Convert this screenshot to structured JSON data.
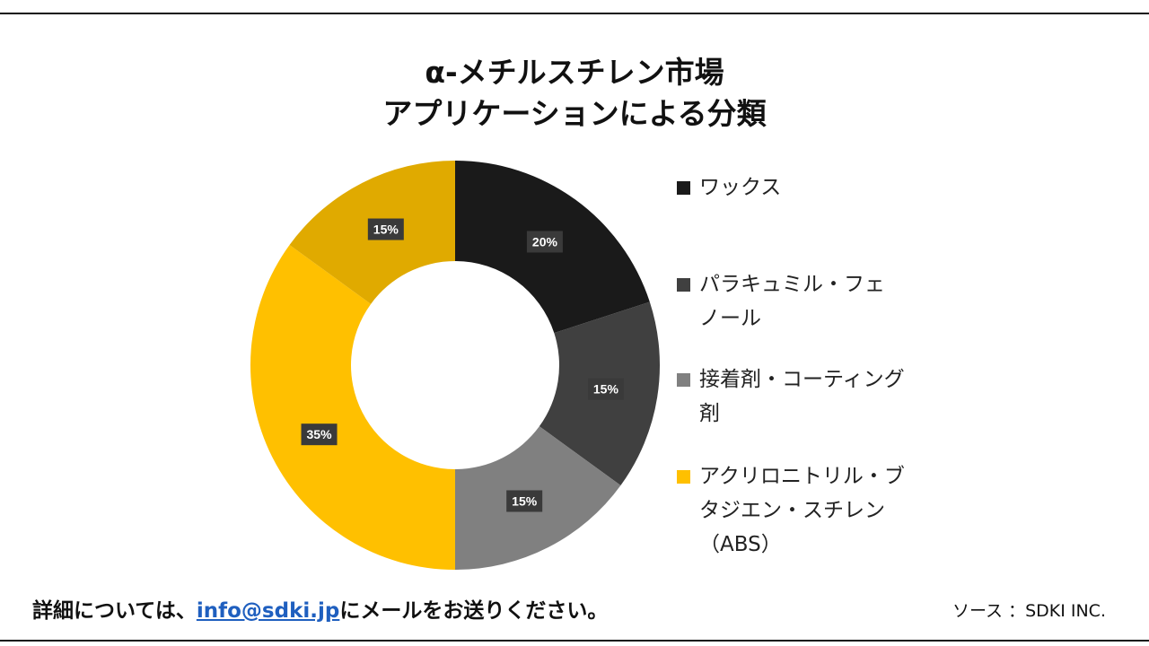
{
  "title": {
    "line1": "α-メチルスチレン市場",
    "line2": "アプリケーションによる分類"
  },
  "chart_data": {
    "type": "pie",
    "subtype": "donut",
    "categories": [
      "ワックス",
      "パラキュミル・フェノール",
      "接着剤・コーティング剤",
      "アクリロニトリル・ブタジエン・スチレン（ABS）",
      ""
    ],
    "values": [
      20,
      15,
      15,
      35,
      15
    ],
    "labels": [
      "20%",
      "15%",
      "15%",
      "35%",
      "15%"
    ],
    "colors": [
      "#1a1a1a",
      "#404040",
      "#808080",
      "#ffc000",
      "#e0aa00"
    ],
    "legend_position": "right"
  },
  "legend": [
    {
      "label": "ワックス",
      "color": "#1a1a1a"
    },
    {
      "label": "パラキュミル・フェ\nノール",
      "color": "#404040"
    },
    {
      "label": "接着剤・コーティング\n剤",
      "color": "#808080"
    },
    {
      "label": "アクリロニトリル・ブ\nタジエン・スチレン\n（ABS）",
      "color": "#ffc000"
    }
  ],
  "footer": {
    "prefix": "詳細については、",
    "email": "info@sdki.jp",
    "suffix": "にメールをお送りください。"
  },
  "source": "ソース ：SDKI INC."
}
